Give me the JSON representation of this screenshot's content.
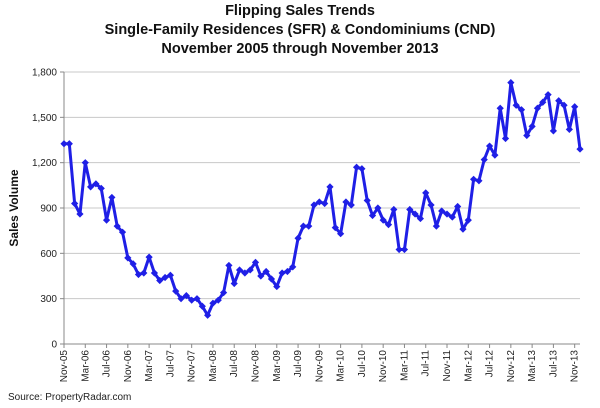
{
  "chart_data": {
    "type": "line",
    "title_lines": [
      "Flipping Sales Trends",
      "Single-Family Residences (SFR) & Condominiums (CND)",
      "November 2005 through November 2013"
    ],
    "xlabel": "",
    "ylabel": "Sales Volume",
    "ylim": [
      0,
      1800
    ],
    "yticks": [
      0,
      300,
      600,
      900,
      1200,
      1500,
      1800
    ],
    "ytick_labels": [
      "0",
      "300",
      "600",
      "900",
      "1,200",
      "1,500",
      "1,800"
    ],
    "grid": "horizontal",
    "legend": "none",
    "x_tick_labels": [
      {
        "index": 0,
        "label": "Nov-05"
      },
      {
        "index": 4,
        "label": "Mar-06"
      },
      {
        "index": 8,
        "label": "Jul-06"
      },
      {
        "index": 12,
        "label": "Nov-06"
      },
      {
        "index": 16,
        "label": "Mar-07"
      },
      {
        "index": 20,
        "label": "Jul-07"
      },
      {
        "index": 24,
        "label": "Nov-07"
      },
      {
        "index": 28,
        "label": "Mar-08"
      },
      {
        "index": 32,
        "label": "Jul-08"
      },
      {
        "index": 36,
        "label": "Nov-08"
      },
      {
        "index": 40,
        "label": "Mar-09"
      },
      {
        "index": 44,
        "label": "Jul-09"
      },
      {
        "index": 48,
        "label": "Nov-09"
      },
      {
        "index": 52,
        "label": "Mar-10"
      },
      {
        "index": 56,
        "label": "Jul-10"
      },
      {
        "index": 60,
        "label": "Nov-10"
      },
      {
        "index": 64,
        "label": "Mar-11"
      },
      {
        "index": 68,
        "label": "Jul-11"
      },
      {
        "index": 72,
        "label": "Nov-11"
      },
      {
        "index": 76,
        "label": "Mar-12"
      },
      {
        "index": 80,
        "label": "Jul-12"
      },
      {
        "index": 84,
        "label": "Nov-12"
      },
      {
        "index": 88,
        "label": "Mar-13"
      },
      {
        "index": 92,
        "label": "Jul-13"
      },
      {
        "index": 96,
        "label": "Nov-13"
      }
    ],
    "series": [
      {
        "color": "#1f1fe6",
        "values": [
          1325,
          1325,
          930,
          860,
          1200,
          1040,
          1060,
          1030,
          820,
          970,
          780,
          740,
          570,
          530,
          460,
          470,
          575,
          470,
          420,
          440,
          455,
          350,
          300,
          320,
          290,
          300,
          250,
          190,
          270,
          290,
          340,
          520,
          400,
          490,
          470,
          490,
          540,
          450,
          480,
          430,
          380,
          470,
          480,
          510,
          700,
          780,
          780,
          920,
          940,
          930,
          1040,
          770,
          730,
          940,
          920,
          1170,
          1160,
          950,
          850,
          900,
          820,
          790,
          890,
          625,
          625,
          890,
          860,
          830,
          1000,
          920,
          780,
          880,
          860,
          840,
          910,
          760,
          820,
          1090,
          1080,
          1220,
          1310,
          1250,
          1560,
          1360,
          1730,
          1580,
          1550,
          1380,
          1440,
          1560,
          1600,
          1650,
          1410,
          1610,
          1580,
          1420,
          1570,
          1290
        ]
      }
    ]
  },
  "source_text": "Source: PropertyRadar.com"
}
